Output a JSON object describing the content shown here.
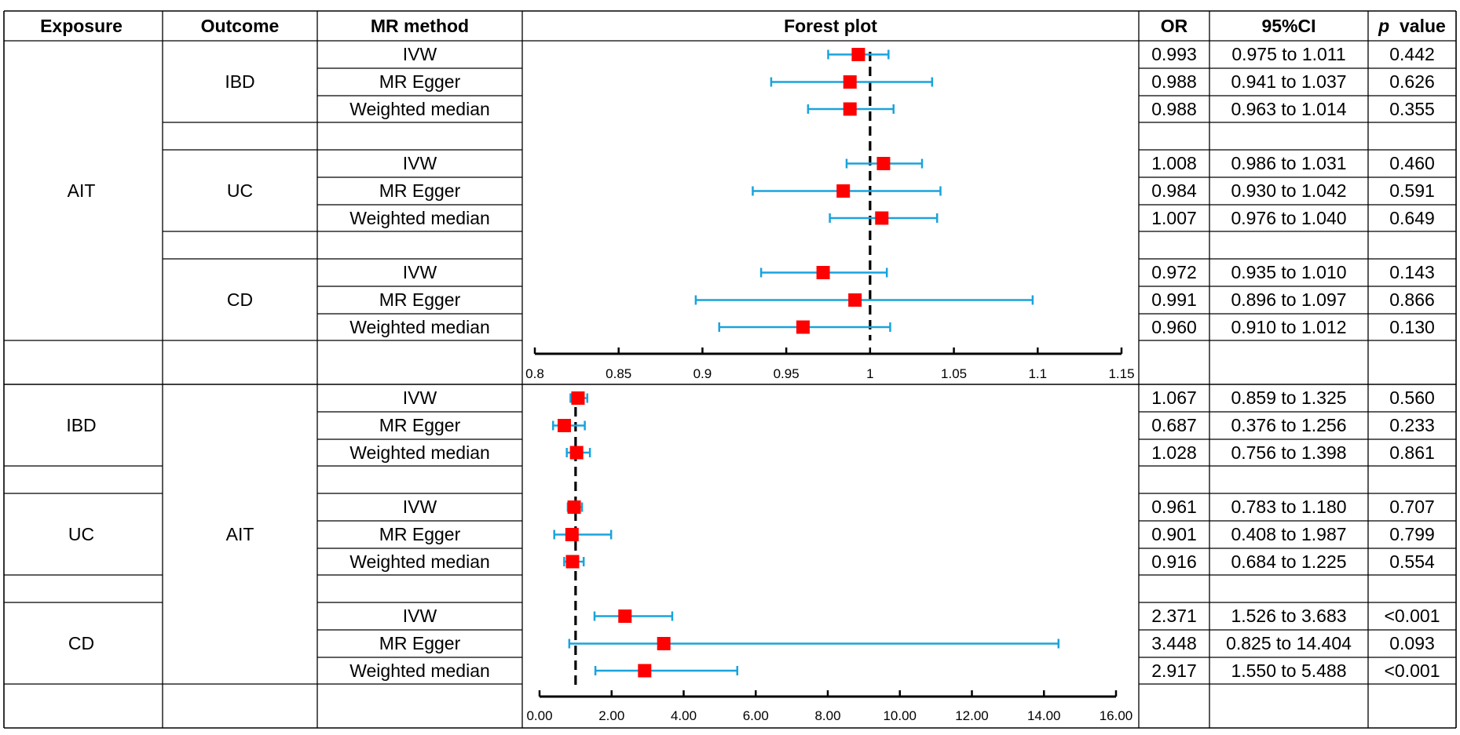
{
  "headers": {
    "exposure": "Exposure",
    "outcome": "Outcome",
    "method": "MR method",
    "forest": "Forest plot",
    "or": "OR",
    "ci": "95%CI",
    "p_italic": "p",
    "p_rest": "value"
  },
  "colors": {
    "marker": "#ff0000",
    "ci_line": "#1aa3dc",
    "grid": "#000000",
    "reference_line": "#000000"
  },
  "chart_data": [
    {
      "type": "forest",
      "title": "Forest plot",
      "exposure": "AIT",
      "x_ticks": [
        "0.8",
        "0.85",
        "0.9",
        "0.95",
        "1",
        "1.05",
        "1.1",
        "1.15"
      ],
      "xlim": [
        0.8,
        1.15
      ],
      "reference": 1,
      "groups": [
        {
          "outcome": "IBD",
          "rows": [
            {
              "method": "IVW",
              "or": "0.993",
              "ci": "0.975 to 1.011",
              "p": "0.442",
              "or_val": 0.993,
              "lo": 0.975,
              "hi": 1.011
            },
            {
              "method": "MR Egger",
              "or": "0.988",
              "ci": "0.941 to 1.037",
              "p": "0.626",
              "or_val": 0.988,
              "lo": 0.941,
              "hi": 1.037
            },
            {
              "method": "Weighted median",
              "or": "0.988",
              "ci": "0.963 to 1.014",
              "p": "0.355",
              "or_val": 0.988,
              "lo": 0.963,
              "hi": 1.014
            }
          ]
        },
        {
          "outcome": "UC",
          "rows": [
            {
              "method": "IVW",
              "or": "1.008",
              "ci": "0.986 to 1.031",
              "p": "0.460",
              "or_val": 1.008,
              "lo": 0.986,
              "hi": 1.031
            },
            {
              "method": "MR Egger",
              "or": "0.984",
              "ci": "0.930 to 1.042",
              "p": "0.591",
              "or_val": 0.984,
              "lo": 0.93,
              "hi": 1.042
            },
            {
              "method": "Weighted median",
              "or": "1.007",
              "ci": "0.976 to 1.040",
              "p": "0.649",
              "or_val": 1.007,
              "lo": 0.976,
              "hi": 1.04
            }
          ]
        },
        {
          "outcome": "CD",
          "rows": [
            {
              "method": "IVW",
              "or": "0.972",
              "ci": "0.935 to 1.010",
              "p": "0.143",
              "or_val": 0.972,
              "lo": 0.935,
              "hi": 1.01
            },
            {
              "method": "MR Egger",
              "or": "0.991",
              "ci": "0.896 to 1.097",
              "p": "0.866",
              "or_val": 0.991,
              "lo": 0.896,
              "hi": 1.097
            },
            {
              "method": "Weighted median",
              "or": "0.960",
              "ci": "0.910 to 1.012",
              "p": "0.130",
              "or_val": 0.96,
              "lo": 0.91,
              "hi": 1.012
            }
          ]
        }
      ]
    },
    {
      "type": "forest",
      "title": "",
      "outcome": "AIT",
      "x_ticks": [
        "0.00",
        "2.00",
        "4.00",
        "6.00",
        "8.00",
        "10.00",
        "12.00",
        "14.00",
        "16.00"
      ],
      "xlim": [
        0,
        16
      ],
      "reference": 1,
      "groups": [
        {
          "exposure": "IBD",
          "rows": [
            {
              "method": "IVW",
              "or": "1.067",
              "ci": "0.859 to 1.325",
              "p": "0.560",
              "or_val": 1.067,
              "lo": 0.859,
              "hi": 1.325
            },
            {
              "method": "MR Egger",
              "or": "0.687",
              "ci": "0.376 to 1.256",
              "p": "0.233",
              "or_val": 0.687,
              "lo": 0.376,
              "hi": 1.256
            },
            {
              "method": "Weighted median",
              "or": "1.028",
              "ci": "0.756 to 1.398",
              "p": "0.861",
              "or_val": 1.028,
              "lo": 0.756,
              "hi": 1.398
            }
          ]
        },
        {
          "exposure": "UC",
          "rows": [
            {
              "method": "IVW",
              "or": "0.961",
              "ci": "0.783 to 1.180",
              "p": "0.707",
              "or_val": 0.961,
              "lo": 0.783,
              "hi": 1.18
            },
            {
              "method": "MR Egger",
              "or": "0.901",
              "ci": "0.408 to 1.987",
              "p": "0.799",
              "or_val": 0.901,
              "lo": 0.408,
              "hi": 1.987
            },
            {
              "method": "Weighted median",
              "or": "0.916",
              "ci": "0.684 to 1.225",
              "p": "0.554",
              "or_val": 0.916,
              "lo": 0.684,
              "hi": 1.225
            }
          ]
        },
        {
          "exposure": "CD",
          "rows": [
            {
              "method": "IVW",
              "or": "2.371",
              "ci": "1.526 to 3.683",
              "p": "<0.001",
              "or_val": 2.371,
              "lo": 1.526,
              "hi": 3.683
            },
            {
              "method": "MR Egger",
              "or": "3.448",
              "ci": "0.825 to 14.404",
              "p": "0.093",
              "or_val": 3.448,
              "lo": 0.825,
              "hi": 14.404
            },
            {
              "method": "Weighted median",
              "or": "2.917",
              "ci": "1.550 to 5.488",
              "p": "<0.001",
              "or_val": 2.917,
              "lo": 1.55,
              "hi": 5.488
            }
          ]
        }
      ]
    }
  ]
}
